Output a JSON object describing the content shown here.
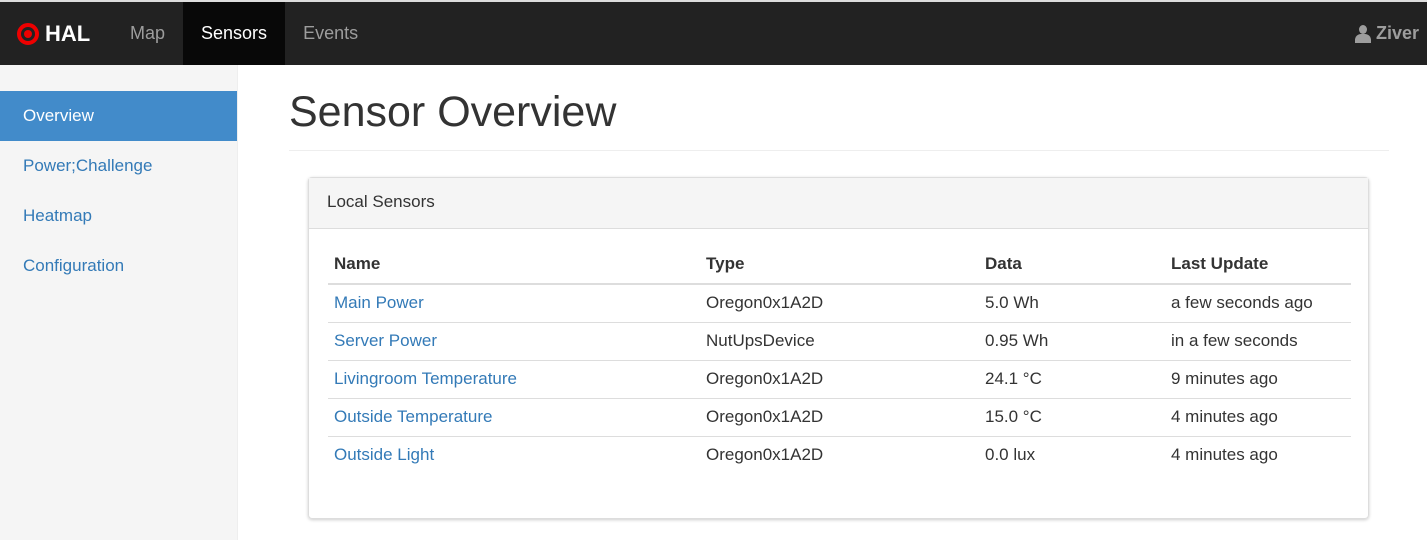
{
  "nav": {
    "brand": "HAL",
    "items": [
      "Map",
      "Sensors",
      "Events"
    ],
    "active": "Sensors",
    "user": "Ziver"
  },
  "sidebar": {
    "items": [
      "Overview",
      "Power;Challenge",
      "Heatmap",
      "Configuration"
    ],
    "active": "Overview"
  },
  "page": {
    "title": "Sensor Overview"
  },
  "panel": {
    "title": "Local Sensors",
    "columns": [
      "Name",
      "Type",
      "Data",
      "Last Update"
    ],
    "rows": [
      [
        "Main Power",
        "Oregon0x1A2D",
        "5.0 Wh",
        "a few seconds ago"
      ],
      [
        "Server Power",
        "NutUpsDevice",
        "0.95 Wh",
        "in a few seconds"
      ],
      [
        "Livingroom Temperature",
        "Oregon0x1A2D",
        "24.1 °C",
        "9 minutes ago"
      ],
      [
        "Outside Temperature",
        "Oregon0x1A2D",
        "15.0 °C",
        "4 minutes ago"
      ],
      [
        "Outside Light",
        "Oregon0x1A2D",
        "0.0 lux",
        "4 minutes ago"
      ]
    ]
  }
}
